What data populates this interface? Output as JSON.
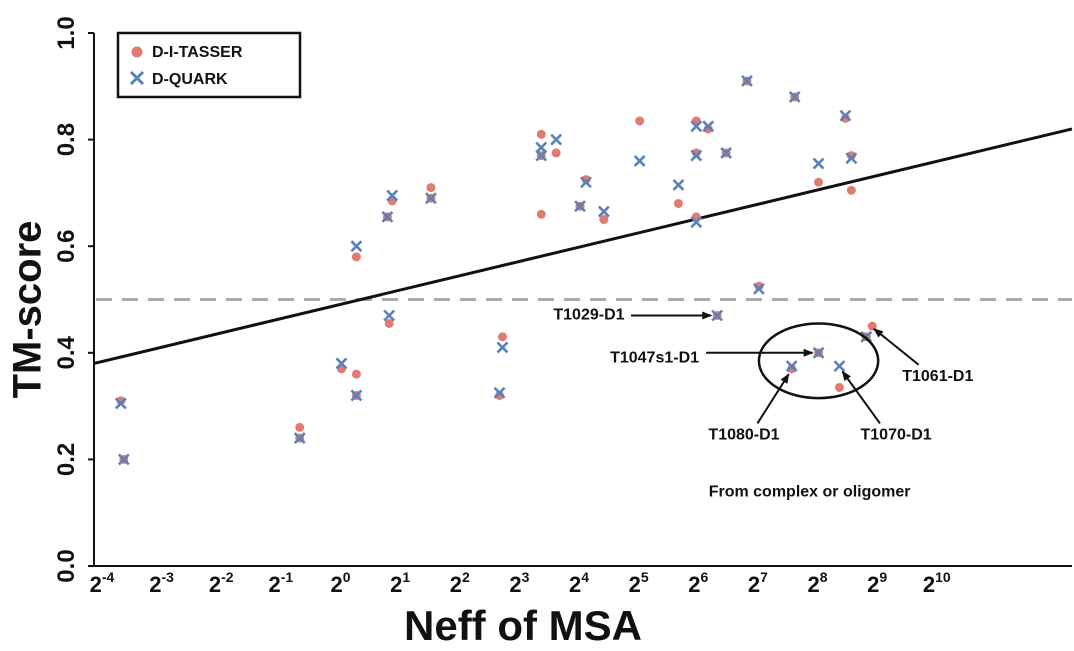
{
  "chart_data": {
    "type": "scatter",
    "xlabel": "Neff of MSA",
    "ylabel": "TM-score",
    "x_scale": "log2",
    "xlim": [
      -4.2,
      12.2
    ],
    "ylim": [
      0,
      1.0
    ],
    "x_ticks": [
      {
        "exp": -4,
        "base": "2",
        "sup": "-4"
      },
      {
        "exp": -3,
        "base": "2",
        "sup": "-3"
      },
      {
        "exp": -2,
        "base": "2",
        "sup": "-2"
      },
      {
        "exp": -1,
        "base": "2",
        "sup": "-1"
      },
      {
        "exp": 0,
        "base": "2",
        "sup": "0"
      },
      {
        "exp": 1,
        "base": "2",
        "sup": "1"
      },
      {
        "exp": 2,
        "base": "2",
        "sup": "2"
      },
      {
        "exp": 3,
        "base": "2",
        "sup": "3"
      },
      {
        "exp": 4,
        "base": "2",
        "sup": "4"
      },
      {
        "exp": 5,
        "base": "2",
        "sup": "5"
      },
      {
        "exp": 6,
        "base": "2",
        "sup": "6"
      },
      {
        "exp": 7,
        "base": "2",
        "sup": "7"
      },
      {
        "exp": 8,
        "base": "2",
        "sup": "8"
      },
      {
        "exp": 9,
        "base": "2",
        "sup": "9"
      },
      {
        "exp": 10,
        "base": "2",
        "sup": "10"
      }
    ],
    "y_ticks": [
      "0.0",
      "0.2",
      "0.4",
      "0.6",
      "0.8",
      "1.0"
    ],
    "y_tick_values": [
      0,
      0.2,
      0.4,
      0.6,
      0.8,
      1.0
    ],
    "legend_position": "top-left",
    "series": [
      {
        "name": "D-I-TASSER",
        "marker": "circle",
        "color": "#e07b72",
        "points": [
          [
            -3.75,
            0.31
          ],
          [
            -3.7,
            0.2
          ],
          [
            -0.75,
            0.26
          ],
          [
            -0.75,
            0.24
          ],
          [
            -0.05,
            0.37
          ],
          [
            0.2,
            0.58
          ],
          [
            0.2,
            0.36
          ],
          [
            0.2,
            0.32
          ],
          [
            0.72,
            0.655
          ],
          [
            0.8,
            0.685
          ],
          [
            0.75,
            0.455
          ],
          [
            1.45,
            0.71
          ],
          [
            1.45,
            0.69
          ],
          [
            2.6,
            0.32
          ],
          [
            2.65,
            0.43
          ],
          [
            3.3,
            0.81
          ],
          [
            3.3,
            0.66
          ],
          [
            3.3,
            0.77
          ],
          [
            3.55,
            0.775
          ],
          [
            3.95,
            0.675
          ],
          [
            4.05,
            0.725
          ],
          [
            4.35,
            0.65
          ],
          [
            4.95,
            0.835
          ],
          [
            5.6,
            0.68
          ],
          [
            5.9,
            0.835
          ],
          [
            5.9,
            0.655
          ],
          [
            5.9,
            0.775
          ],
          [
            6.1,
            0.82
          ],
          [
            6.25,
            0.47
          ],
          [
            6.4,
            0.775
          ],
          [
            6.75,
            0.91
          ],
          [
            6.95,
            0.525
          ],
          [
            7.5,
            0.37
          ],
          [
            7.55,
            0.88
          ],
          [
            7.95,
            0.4
          ],
          [
            7.95,
            0.72
          ],
          [
            8.3,
            0.335
          ],
          [
            8.4,
            0.84
          ],
          [
            8.5,
            0.705
          ],
          [
            8.5,
            0.77
          ],
          [
            8.85,
            0.45
          ],
          [
            8.75,
            0.43
          ]
        ]
      },
      {
        "name": "D-QUARK",
        "marker": "x",
        "color": "#5a82b8",
        "points": [
          [
            -3.75,
            0.305
          ],
          [
            -3.7,
            0.2
          ],
          [
            -0.75,
            0.24
          ],
          [
            -0.05,
            0.38
          ],
          [
            0.2,
            0.6
          ],
          [
            0.2,
            0.32
          ],
          [
            0.72,
            0.655
          ],
          [
            0.8,
            0.695
          ],
          [
            0.75,
            0.47
          ],
          [
            1.45,
            0.69
          ],
          [
            2.6,
            0.325
          ],
          [
            2.65,
            0.41
          ],
          [
            3.3,
            0.785
          ],
          [
            3.3,
            0.77
          ],
          [
            3.55,
            0.8
          ],
          [
            3.95,
            0.675
          ],
          [
            4.05,
            0.72
          ],
          [
            4.35,
            0.665
          ],
          [
            4.95,
            0.76
          ],
          [
            5.6,
            0.715
          ],
          [
            5.9,
            0.825
          ],
          [
            5.9,
            0.645
          ],
          [
            5.9,
            0.77
          ],
          [
            6.1,
            0.825
          ],
          [
            6.25,
            0.47
          ],
          [
            6.4,
            0.775
          ],
          [
            6.75,
            0.91
          ],
          [
            6.95,
            0.52
          ],
          [
            7.5,
            0.375
          ],
          [
            7.55,
            0.88
          ],
          [
            7.95,
            0.4
          ],
          [
            7.95,
            0.755
          ],
          [
            8.3,
            0.375
          ],
          [
            8.4,
            0.845
          ],
          [
            8.5,
            0.765
          ],
          [
            8.75,
            0.43
          ]
        ]
      }
    ],
    "trend_line": {
      "x": [
        -4.2,
        12.2
      ],
      "y": [
        0.38,
        0.82
      ],
      "color": "#111111"
    },
    "threshold_line": {
      "y": 0.5,
      "style": "dashed",
      "color": "#aaaaaa"
    },
    "annotations": [
      {
        "label": "T1029-D1",
        "text_x": 4.1,
        "text_y": 0.47,
        "arrow_to": [
          6.15,
          0.47
        ]
      },
      {
        "label": "T1047s1-D1",
        "text_x": 5.2,
        "text_y": 0.39,
        "arrow_to": [
          7.85,
          0.4
        ]
      },
      {
        "label": "T1061-D1",
        "text_x": 9.95,
        "text_y": 0.355,
        "arrow_to": [
          8.88,
          0.445
        ]
      },
      {
        "label": "T1080-D1",
        "text_x": 6.7,
        "text_y": 0.245,
        "arrow_to": [
          7.45,
          0.36
        ]
      },
      {
        "label": "T1070-D1",
        "text_x": 9.25,
        "text_y": 0.245,
        "arrow_to": [
          8.35,
          0.365
        ]
      }
    ],
    "ellipse": {
      "cx": 7.95,
      "cy": 0.385,
      "rx": 1.0,
      "ry": 0.07
    },
    "group_label": {
      "text": "From complex or oligomer",
      "x": 7.8,
      "y": 0.13
    }
  }
}
